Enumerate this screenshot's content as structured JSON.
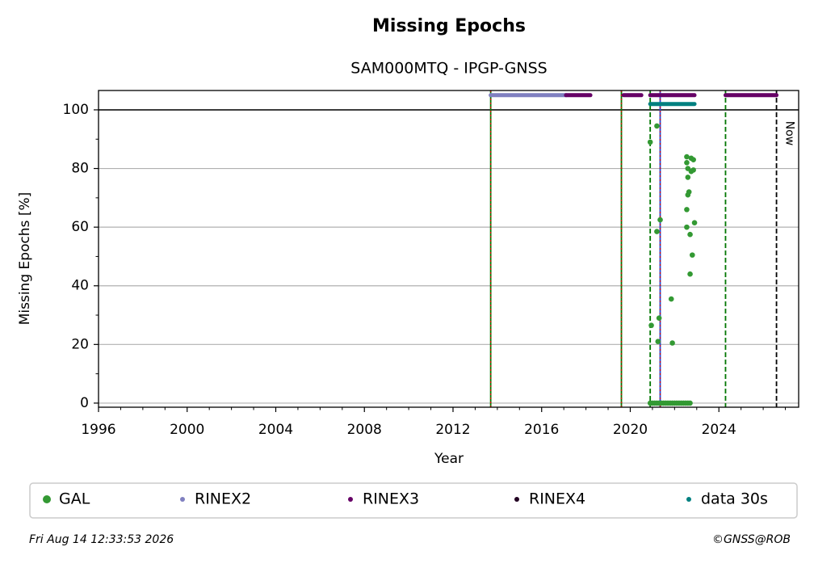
{
  "chart_data": {
    "type": "scatter",
    "title": "Missing Epochs",
    "subtitle": "SAM000MTQ - IPGP-GNSS",
    "x_label": "Year",
    "y_label": "Missing Epochs [%]",
    "xlim": [
      1996,
      2027.6
    ],
    "ylim": [
      -1.4,
      106.6
    ],
    "xticks": [
      1996,
      2000,
      2004,
      2008,
      2012,
      2016,
      2020,
      2024
    ],
    "yticks": [
      0,
      20,
      40,
      60,
      80,
      100
    ],
    "x_minor_step": 1,
    "y_minor_step": 10,
    "grid": true,
    "reference_line": 100,
    "series": [
      {
        "name": "GAL",
        "color": "#339933",
        "mode": "points",
        "x": [
          2020.9,
          2020.95,
          2021.2,
          2021.2,
          2021.25,
          2021.3,
          2021.35,
          2021.85,
          2021.9,
          2022.55,
          2022.55,
          2022.6,
          2022.6,
          2022.65,
          2022.6,
          2022.55,
          2022.55,
          2022.7,
          2022.75,
          2022.8,
          2022.7,
          2022.85,
          2022.85,
          2022.9,
          2022.75,
          2020.9,
          2021.0,
          2021.1,
          2021.2,
          2021.3,
          2021.4,
          2021.5,
          2021.6,
          2021.7,
          2021.8,
          2021.9,
          2022.0,
          2022.1,
          2022.2,
          2022.3,
          2022.4,
          2022.5,
          2022.6,
          2022.7
        ],
        "values": [
          89,
          26.5,
          94.5,
          58.5,
          21,
          29,
          62.5,
          35.5,
          20.5,
          84,
          82,
          80,
          77,
          72,
          71,
          66,
          60,
          57.5,
          83.5,
          50.5,
          44,
          83,
          79.5,
          61.5,
          79,
          0,
          0,
          0,
          0,
          0,
          0,
          0,
          0,
          0,
          0,
          0,
          0,
          0,
          0,
          0,
          0,
          0,
          0,
          0
        ]
      },
      {
        "name": "RINEX2",
        "color": "#8080c0",
        "mode": "runs",
        "x": [
          2013.7,
          2017.1
        ],
        "values": [
          105,
          105
        ]
      },
      {
        "name": "RINEX3",
        "color": "#660066",
        "mode": "runs",
        "x": [
          2017.1,
          2018.2,
          null,
          2019.7,
          2020.5,
          null,
          2020.9,
          2022.9,
          null,
          2024.3,
          2026.6
        ],
        "values": [
          105,
          105,
          null,
          105,
          105,
          null,
          105,
          105,
          null,
          105,
          105
        ]
      },
      {
        "name": "RINEX4",
        "color": "#220022",
        "mode": "runs",
        "x": [],
        "values": []
      },
      {
        "name": "data 30s",
        "color": "#008080",
        "mode": "runs",
        "x": [
          2020.9,
          2022.9
        ],
        "values": [
          102,
          102
        ]
      }
    ],
    "vertical_lines": [
      {
        "x": 2013.7,
        "color": "#007700",
        "overlay": "#dd0000"
      },
      {
        "x": 2019.6,
        "color": "#007700",
        "overlay": "#dd0000"
      },
      {
        "x": 2020.9,
        "color": "#007700"
      },
      {
        "x": 2021.35,
        "color": "#2244cc",
        "overlay": "#dd0000"
      },
      {
        "x": 2024.3,
        "color": "#007700"
      },
      {
        "x": 2026.6,
        "color": "#000000",
        "label": "Now"
      }
    ],
    "timestamp": "Fri Aug 14 12:33:53 2026",
    "copyright": "©GNSS@ROB"
  }
}
